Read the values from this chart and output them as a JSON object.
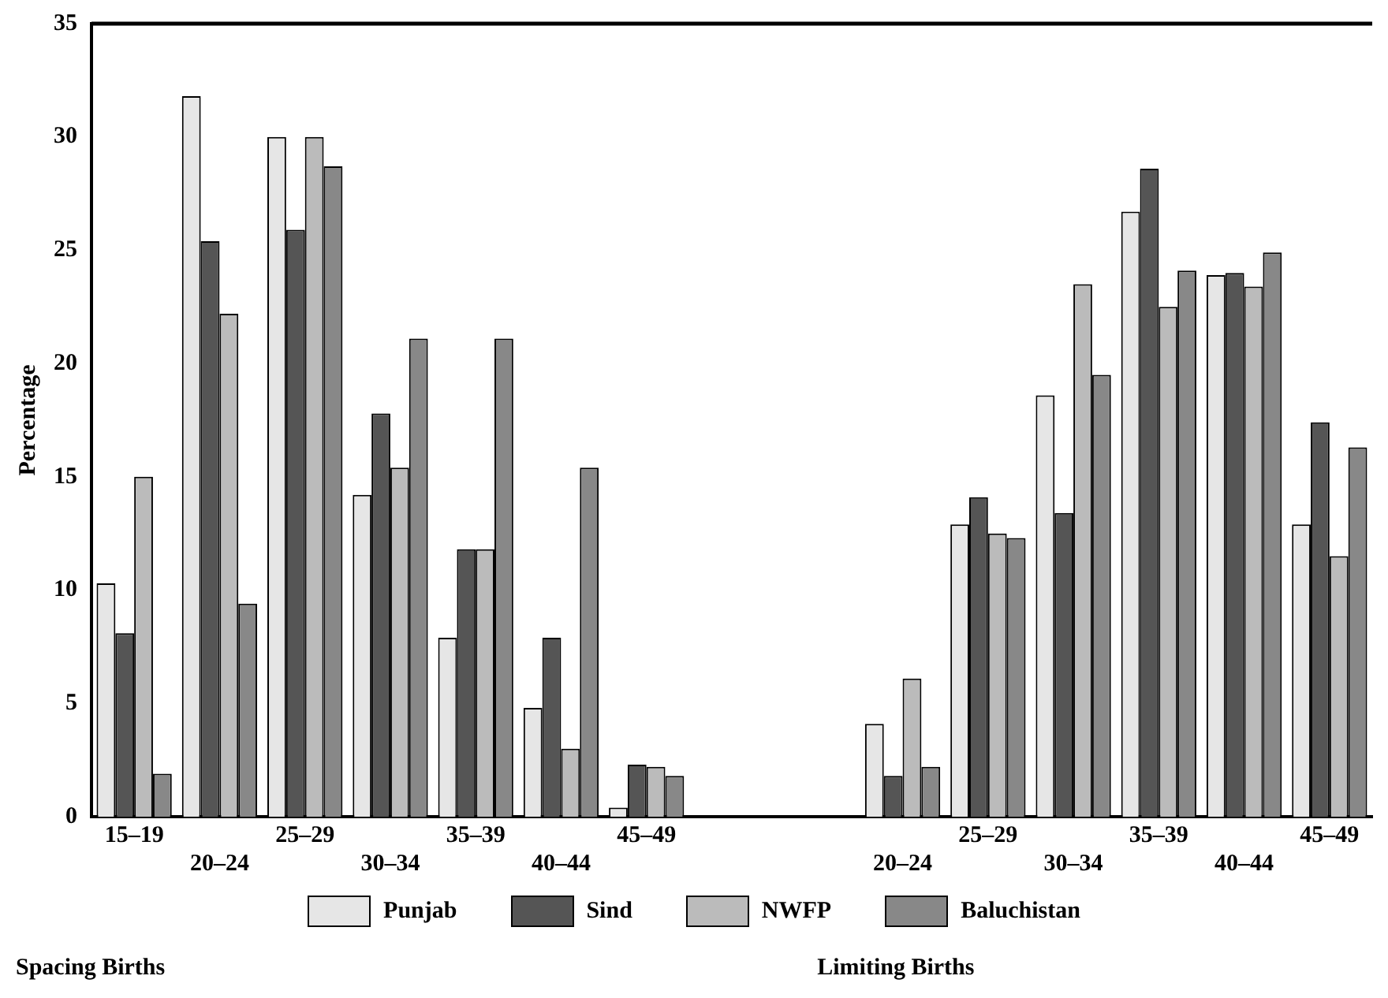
{
  "chart_data": {
    "type": "bar",
    "ylabel": "Percentage",
    "categories": [
      "15–19",
      "20–24",
      "25–29",
      "30–34",
      "35–39",
      "40–44",
      "45–49",
      null,
      null,
      "20–24",
      "25–29",
      "30–34",
      "35–39",
      "40–44",
      "45–49"
    ],
    "series": [
      {
        "name": "Punjab",
        "color": "#e6e6e6",
        "values": [
          10.3,
          31.8,
          30,
          14.2,
          7.9,
          4.8,
          0.4,
          null,
          null,
          4.1,
          12.9,
          18.6,
          26.7,
          23.9,
          12.9
        ]
      },
      {
        "name": "Sind",
        "color": "#555555",
        "values": [
          8.1,
          25.4,
          25.9,
          17.8,
          11.8,
          7.9,
          2.3,
          null,
          null,
          1.8,
          14.1,
          13.4,
          28.6,
          24.0,
          17.4
        ]
      },
      {
        "name": "NWFP",
        "color": "#bbbbbb",
        "values": [
          15,
          22.2,
          30,
          15.4,
          11.8,
          3.0,
          2.2,
          null,
          null,
          6.1,
          12.5,
          23.5,
          22.5,
          23.4,
          11.5
        ]
      },
      {
        "name": "Baluchistan",
        "color": "#888888",
        "values": [
          1.9,
          9.4,
          28.7,
          21.1,
          21.1,
          15.4,
          1.8,
          null,
          null,
          2.2,
          12.3,
          19.5,
          24.1,
          24.9,
          16.3
        ]
      }
    ],
    "ylim": [
      0,
      35
    ],
    "yticks": [
      0,
      5,
      10,
      15,
      20,
      25,
      30,
      35
    ],
    "grid": false,
    "legend": "bottom",
    "annotations": [
      "Spacing Births",
      "Limiting Births"
    ]
  }
}
